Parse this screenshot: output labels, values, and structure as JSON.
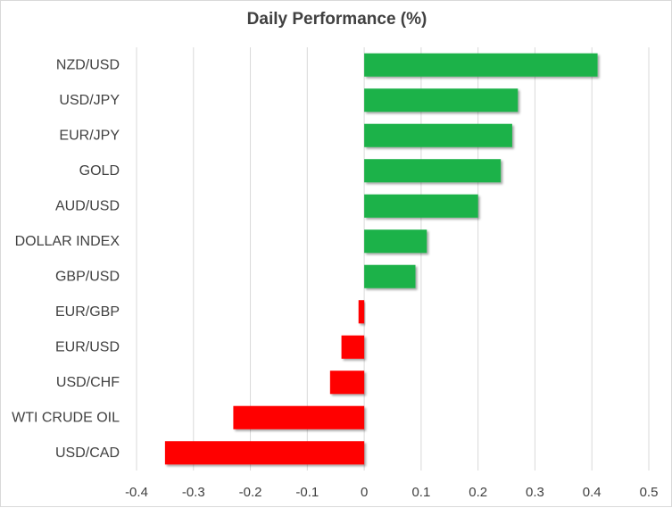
{
  "chart_data": {
    "type": "bar",
    "orientation": "horizontal",
    "title": "Daily Performance (%)",
    "categories": [
      "NZD/USD",
      "USD/JPY",
      "EUR/JPY",
      "GOLD",
      "AUD/USD",
      "DOLLAR INDEX",
      "GBP/USD",
      "EUR/GBP",
      "EUR/USD",
      "USD/CHF",
      "WTI CRUDE OIL",
      "USD/CAD"
    ],
    "values": [
      0.41,
      0.27,
      0.26,
      0.24,
      0.2,
      0.11,
      0.09,
      -0.01,
      -0.04,
      -0.06,
      -0.23,
      -0.35
    ],
    "xlim": [
      -0.4,
      0.5
    ],
    "xticks": [
      -0.4,
      -0.3,
      -0.2,
      -0.1,
      0,
      0.1,
      0.2,
      0.3,
      0.4,
      0.5
    ],
    "xtick_labels": [
      "-0.4",
      "-0.3",
      "-0.2",
      "-0.1",
      "0",
      "0.1",
      "0.2",
      "0.3",
      "0.4",
      "0.5"
    ],
    "grid": "vertical",
    "xlabel": "",
    "ylabel": "",
    "colors": {
      "positive": "#1fb24a",
      "negative": "#ff0000",
      "grid": "#d9d9d9",
      "text": "#404040"
    }
  }
}
